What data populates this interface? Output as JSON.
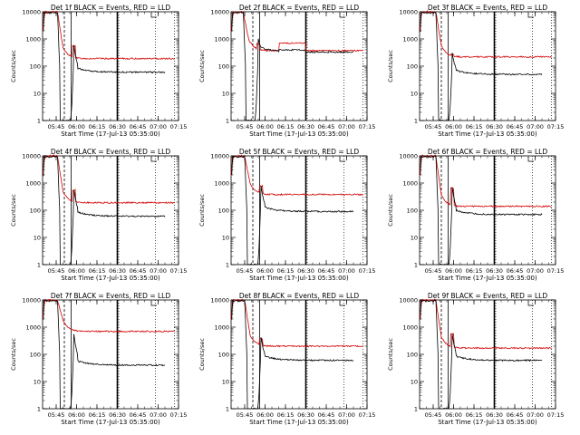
{
  "chart_data": {
    "type": "line",
    "layout": "3x3 grid",
    "common": {
      "ylabel": "Counts/sec",
      "xlabel": "Start Time (17-Jul-13 05:35:00)",
      "yscale": "log",
      "ylim": [
        1,
        10000
      ],
      "yticks": [
        "1",
        "10",
        "100",
        "1000",
        "10000"
      ],
      "xlim_minutes": [
        0,
        100
      ],
      "xticks": [
        "05:45",
        "06:00",
        "06:15",
        "06:30",
        "06:45",
        "07:00",
        "07:15"
      ],
      "xtick_minutes": [
        10,
        25,
        40,
        55,
        70,
        85,
        100
      ],
      "series_colors": {
        "events": "#000000",
        "lld": "#d40000"
      },
      "vertical_lines": {
        "dashed": [
          16
        ],
        "solid_thin": [
          21
        ],
        "solid_thick": [
          55
        ],
        "dotted": [
          55,
          82,
          96
        ]
      }
    },
    "panels": [
      {
        "title": "Det  1f  BLACK = Events, RED = LLD",
        "drop": 12,
        "peak": 23,
        "peak_events": 500,
        "events_level": 60,
        "lld_level": 190,
        "lld_bump": false
      },
      {
        "title": "Det  2f  BLACK = Events, RED = LLD",
        "drop": 10,
        "peak": 20,
        "peak_events": 600,
        "events_level": 330,
        "lld_level": 370,
        "lld_bump": true
      },
      {
        "title": "Det  3f  BLACK = Events, RED = LLD",
        "drop": 13,
        "peak": 24,
        "peak_events": 250,
        "events_level": 50,
        "lld_level": 220,
        "lld_bump": false
      },
      {
        "title": "Det  4f  BLACK = Events, RED = LLD",
        "drop": 12,
        "peak": 23,
        "peak_events": 500,
        "events_level": 60,
        "lld_level": 190,
        "lld_bump": false
      },
      {
        "title": "Det  5f  BLACK = Events, RED = LLD",
        "drop": 11,
        "peak": 22,
        "peak_events": 700,
        "events_level": 90,
        "lld_level": 380,
        "lld_bump": false
      },
      {
        "title": "Det  6f  BLACK = Events, RED = LLD",
        "drop": 13,
        "peak": 24,
        "peak_events": 600,
        "events_level": 70,
        "lld_level": 140,
        "lld_bump": false
      },
      {
        "title": "Det  7f  BLACK = Events, RED = LLD",
        "drop": 12,
        "peak": 23,
        "peak_events": 500,
        "events_level": 40,
        "lld_level": 700,
        "lld_bump": false
      },
      {
        "title": "Det  8f  BLACK = Events, RED = LLD",
        "drop": 11,
        "peak": 22,
        "peak_events": 350,
        "events_level": 60,
        "lld_level": 200,
        "lld_bump": false
      },
      {
        "title": "Det  9f  BLACK = Events, RED = LLD",
        "drop": 13,
        "peak": 24,
        "peak_events": 500,
        "events_level": 60,
        "lld_level": 170,
        "lld_bump": false
      }
    ]
  }
}
